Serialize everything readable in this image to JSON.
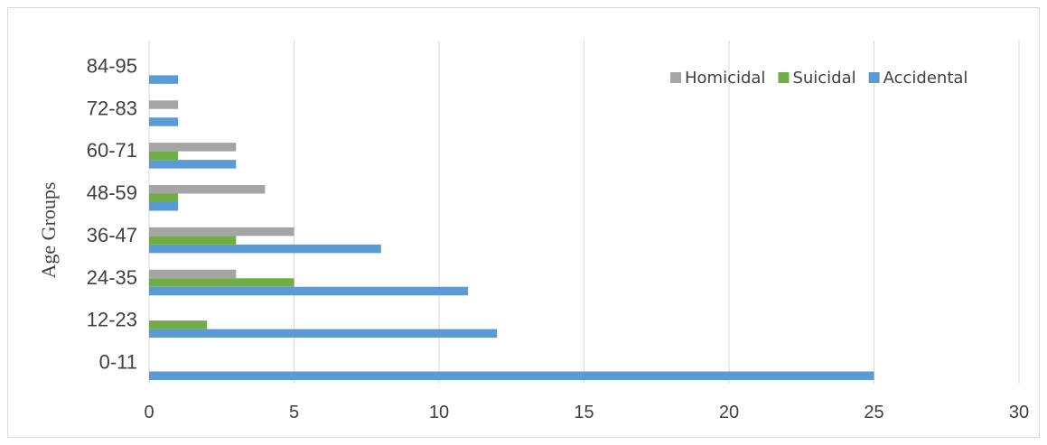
{
  "chart_data": {
    "type": "bar",
    "orientation": "horizontal",
    "title": "",
    "ylabel": "Age Groups",
    "xlabel": "",
    "categories": [
      "0-11",
      "12-23",
      "24-35",
      "36-47",
      "48-59",
      "60-71",
      "72-83",
      "84-95"
    ],
    "series": [
      {
        "name": "Accidental",
        "color": "#5b9bd5",
        "values": [
          25,
          12,
          11,
          8,
          1,
          3,
          1,
          1
        ]
      },
      {
        "name": "Suicidal",
        "color": "#70ad47",
        "values": [
          0,
          2,
          5,
          3,
          1,
          1,
          0,
          0
        ]
      },
      {
        "name": "Homicidal",
        "color": "#a5a5a5",
        "values": [
          0,
          0,
          3,
          5,
          4,
          3,
          1,
          0
        ]
      }
    ],
    "xlim": [
      0,
      30
    ],
    "x_ticks": [
      "0",
      "5",
      "10",
      "15",
      "20",
      "25",
      "30"
    ],
    "grid": "vertical",
    "legend_position": "top-right",
    "legend_order": [
      "Homicidal",
      "Suicidal",
      "Accidental"
    ]
  }
}
